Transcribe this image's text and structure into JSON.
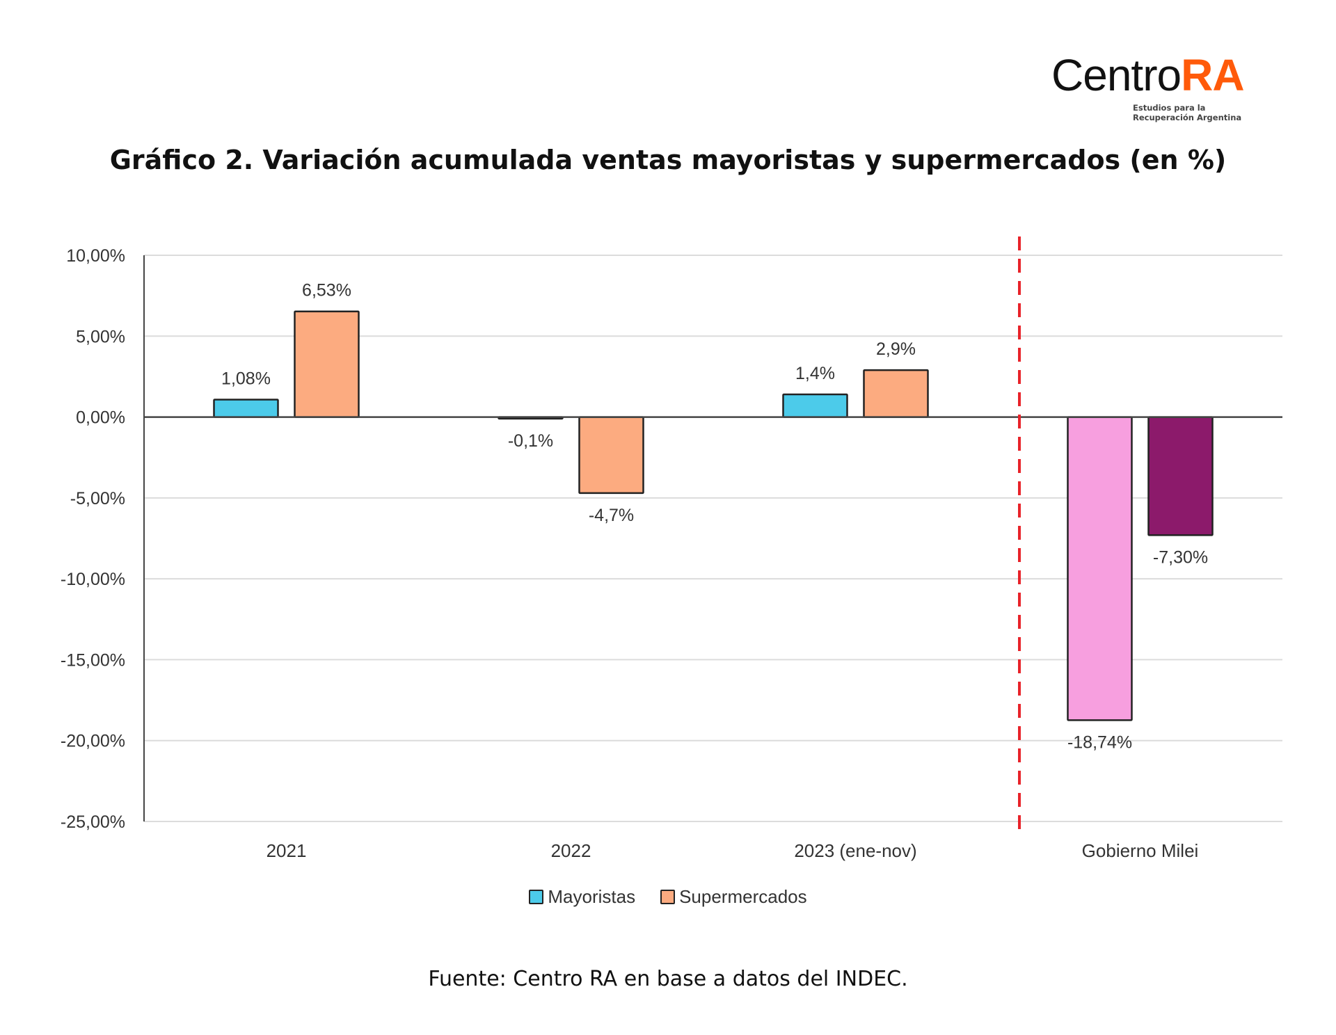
{
  "logo": {
    "text_main": "Centro",
    "text_accent": "RA",
    "tagline_1": "Estudios para la",
    "tagline_2": "Recuperación Argentina"
  },
  "title": "Gráfico 2. Variación acumulada ventas mayoristas y supermercados (en %)",
  "source": "Fuente: Centro RA en base a datos del INDEC.",
  "chart_data": {
    "type": "bar",
    "title": "Gráfico 2. Variación acumulada ventas mayoristas y supermercados (en %)",
    "categories": [
      "2021",
      "2022",
      "2023 (ene-nov)",
      "Gobierno Milei"
    ],
    "series": [
      {
        "name": "Mayoristas",
        "color": "#4ccbea",
        "values": [
          1.08,
          -0.1,
          1.4,
          -18.74
        ],
        "labels": [
          "1,08%",
          "-0,1%",
          "1,4%",
          "-18,74%"
        ],
        "point_colors": [
          null,
          null,
          null,
          "#f79fdf"
        ]
      },
      {
        "name": "Supermercados",
        "color": "#fcab80",
        "values": [
          6.53,
          -4.7,
          2.9,
          -7.3
        ],
        "labels": [
          "6,53%",
          "-4,7%",
          "2,9%",
          "-7,30%"
        ],
        "point_colors": [
          null,
          null,
          null,
          "#8c1a6b"
        ]
      }
    ],
    "ylim": [
      -25,
      10
    ],
    "yticks": [
      10,
      5,
      0,
      -5,
      -10,
      -15,
      -20,
      -25
    ],
    "ytick_labels": [
      "10,00%",
      "5,00%",
      "0,00%",
      "-5,00%",
      "-10,00%",
      "-15,00%",
      "-20,00%",
      "-25,00%"
    ],
    "grid": true,
    "legend_position": "bottom",
    "annotation": {
      "type": "vertical-dashed-line",
      "between": [
        "2023 (ene-nov)",
        "Gobierno Milei"
      ],
      "color": "#e8232a"
    }
  }
}
